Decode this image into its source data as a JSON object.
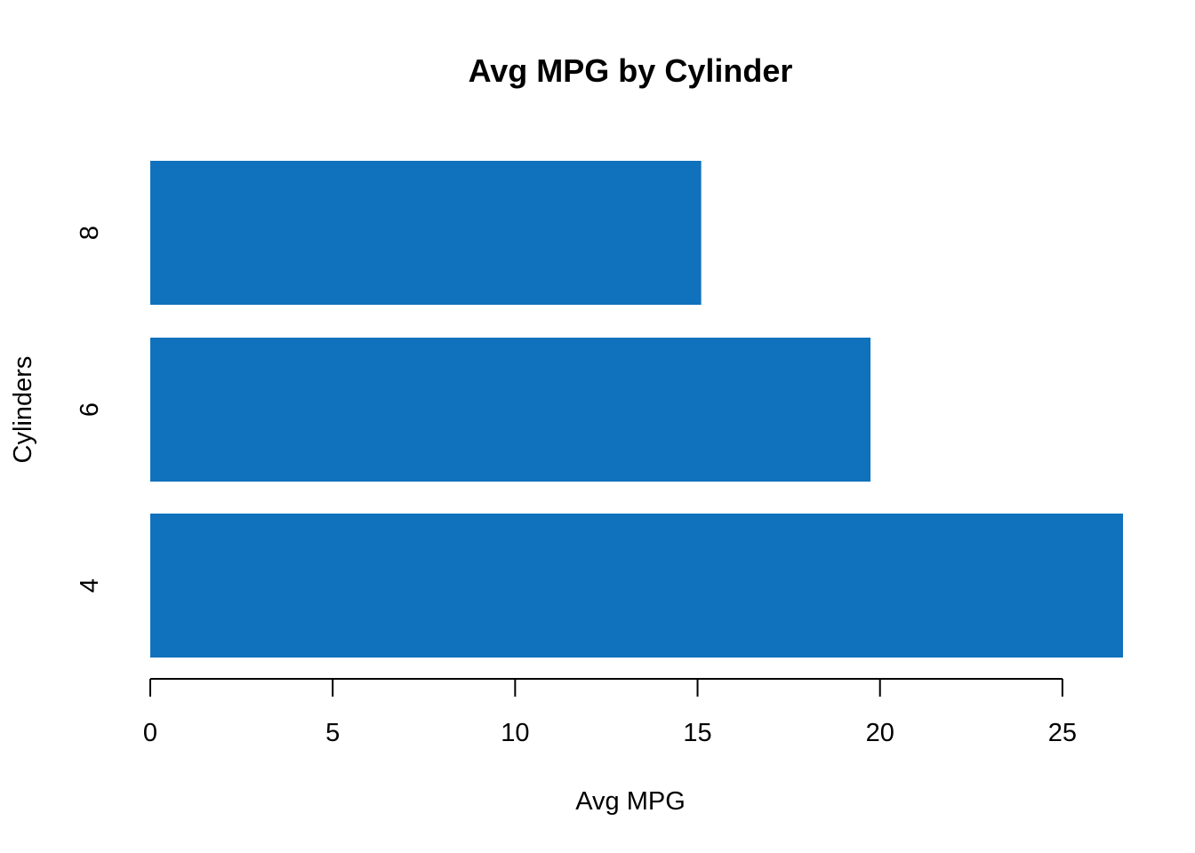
{
  "chart_data": {
    "type": "bar",
    "orientation": "horizontal",
    "title": "Avg MPG by Cylinder",
    "xlabel": "Avg MPG",
    "ylabel": "Cylinders",
    "categories": [
      "4",
      "6",
      "8"
    ],
    "values": [
      26.66,
      19.74,
      15.1
    ],
    "xlim": [
      0,
      26.66
    ],
    "xticks": [
      0,
      5,
      10,
      15,
      20,
      25
    ],
    "bar_color": "#1071BD",
    "grid": false,
    "legend": "none"
  }
}
